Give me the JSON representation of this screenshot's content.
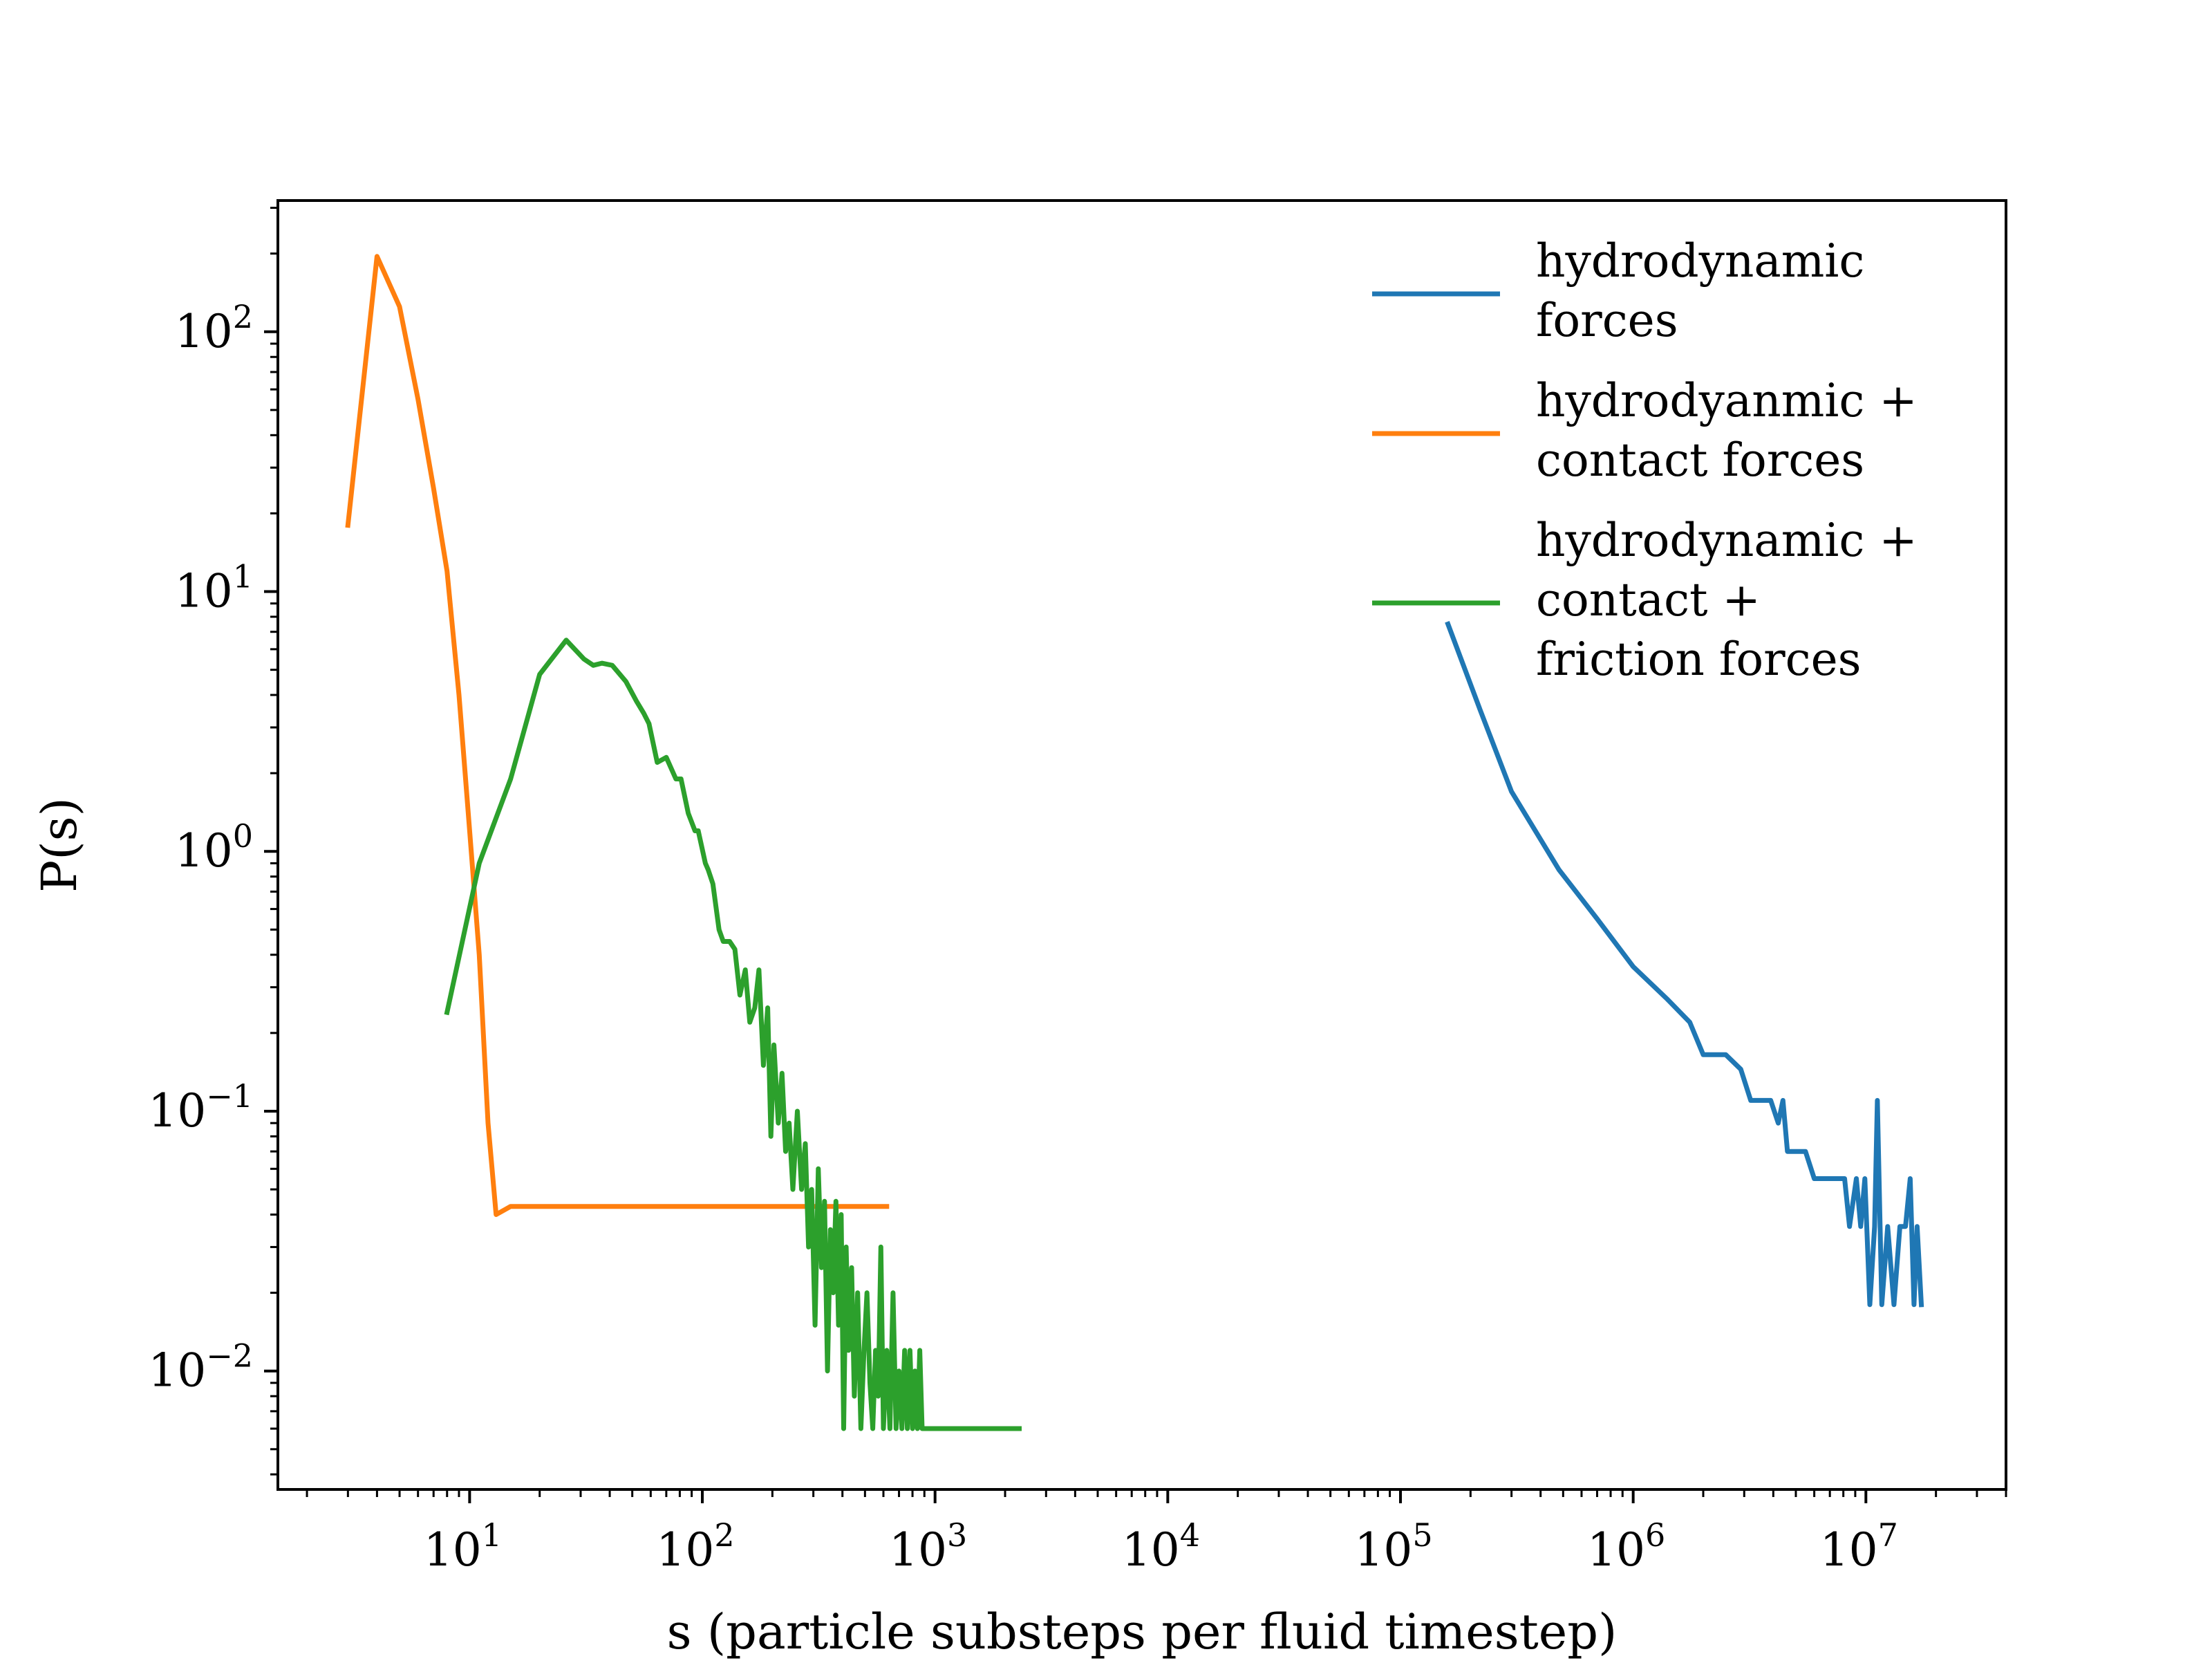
{
  "chart_data": {
    "type": "line",
    "xlabel": "s (particle substeps per fluid timestep)",
    "ylabel": "P(s)",
    "xscale": "log",
    "yscale": "log",
    "xlim": [
      1.5,
      40000000
    ],
    "ylim": [
      0.0035,
      320
    ],
    "grid": false,
    "legend_position": "top-right",
    "x_ticks": [
      {
        "base": "10",
        "exp": "1"
      },
      {
        "base": "10",
        "exp": "2"
      },
      {
        "base": "10",
        "exp": "3"
      },
      {
        "base": "10",
        "exp": "4"
      },
      {
        "base": "10",
        "exp": "5"
      },
      {
        "base": "10",
        "exp": "6"
      },
      {
        "base": "10",
        "exp": "7"
      }
    ],
    "y_ticks": [
      {
        "base": "10",
        "exp": "2"
      },
      {
        "base": "10",
        "exp": "1"
      },
      {
        "base": "10",
        "exp": "0"
      },
      {
        "base": "10",
        "exp": "−1"
      },
      {
        "base": "10",
        "exp": "−2"
      }
    ],
    "series": [
      {
        "name": "hydrodynamic forces",
        "legend_lines": [
          "hydrodynamic",
          "forces"
        ],
        "color": "#1f77b4",
        "x": [
          160000,
          220000,
          300000,
          480000,
          700000,
          1000000,
          1400000,
          1750000,
          2000000,
          2500000,
          2900000,
          3200000,
          3900000,
          4200000,
          4400000,
          4600000,
          5500000,
          6000000,
          6800000,
          7600000,
          8100000,
          8500000,
          9100000,
          9500000,
          9900000,
          10400000,
          10900000,
          11200000,
          11700000,
          12400000,
          13200000,
          14000000,
          14800000,
          15500000,
          16100000,
          16600000,
          17300000
        ],
        "y": [
          7.5,
          3.5,
          1.7,
          0.85,
          0.55,
          0.36,
          0.27,
          0.22,
          0.165,
          0.165,
          0.145,
          0.11,
          0.11,
          0.09,
          0.11,
          0.07,
          0.07,
          0.055,
          0.055,
          0.055,
          0.055,
          0.036,
          0.055,
          0.036,
          0.055,
          0.018,
          0.036,
          0.11,
          0.018,
          0.036,
          0.018,
          0.036,
          0.036,
          0.055,
          0.018,
          0.036,
          0.018
        ]
      },
      {
        "name": "hydrodyanmic + contact forces",
        "legend_lines": [
          "hydrodyanmic +",
          "contact forces"
        ],
        "color": "#ff7f0e",
        "x": [
          3,
          4,
          5,
          6,
          7,
          8,
          9,
          10,
          11,
          12,
          13,
          15,
          20,
          50,
          100,
          300,
          620
        ],
        "y": [
          18,
          195,
          125,
          55,
          25,
          12,
          4,
          1.2,
          0.4,
          0.09,
          0.04,
          0.043,
          0.043,
          0.043,
          0.043,
          0.043,
          0.043
        ]
      },
      {
        "name": "hydrodynamic + contact + friction forces",
        "legend_lines": [
          "hydrodynamic +",
          "contact +",
          "friction forces"
        ],
        "color": "#2ca02c",
        "x": [
          8,
          11,
          15,
          20,
          26,
          31,
          34,
          37,
          41,
          47,
          52,
          56,
          59,
          64,
          70,
          77,
          81,
          87,
          93,
          96,
          103,
          106,
          111,
          118,
          123,
          131,
          138,
          145,
          153,
          160,
          168,
          175,
          183,
          191,
          197,
          203,
          212,
          220,
          228,
          236,
          245,
          256,
          267,
          277,
          286,
          295,
          305,
          315,
          325,
          335,
          345,
          355,
          365,
          375,
          385,
          395,
          405,
          415,
          425,
          438,
          450,
          465,
          480,
          495,
          510,
          525,
          540,
          555,
          570,
          585,
          600,
          620,
          640,
          660,
          680,
          700,
          720,
          740,
          760,
          780,
          800,
          820,
          840,
          860,
          880,
          900,
          930,
          960,
          1000,
          2300
        ],
        "y": [
          0.24,
          0.9,
          1.9,
          4.8,
          6.5,
          5.5,
          5.2,
          5.3,
          5.2,
          4.5,
          3.8,
          3.4,
          3.1,
          2.2,
          2.3,
          1.9,
          1.9,
          1.4,
          1.2,
          1.2,
          0.9,
          0.85,
          0.75,
          0.5,
          0.45,
          0.45,
          0.42,
          0.28,
          0.35,
          0.22,
          0.25,
          0.35,
          0.15,
          0.25,
          0.08,
          0.18,
          0.09,
          0.14,
          0.07,
          0.09,
          0.05,
          0.1,
          0.05,
          0.075,
          0.03,
          0.05,
          0.015,
          0.06,
          0.025,
          0.045,
          0.01,
          0.035,
          0.02,
          0.045,
          0.015,
          0.04,
          0.006,
          0.03,
          0.012,
          0.025,
          0.008,
          0.02,
          0.006,
          0.012,
          0.02,
          0.009,
          0.006,
          0.012,
          0.008,
          0.03,
          0.006,
          0.012,
          0.006,
          0.02,
          0.006,
          0.01,
          0.006,
          0.012,
          0.006,
          0.012,
          0.006,
          0.01,
          0.006,
          0.012,
          0.006,
          0.006,
          0.006,
          0.006,
          0.006,
          0.006
        ]
      }
    ]
  }
}
